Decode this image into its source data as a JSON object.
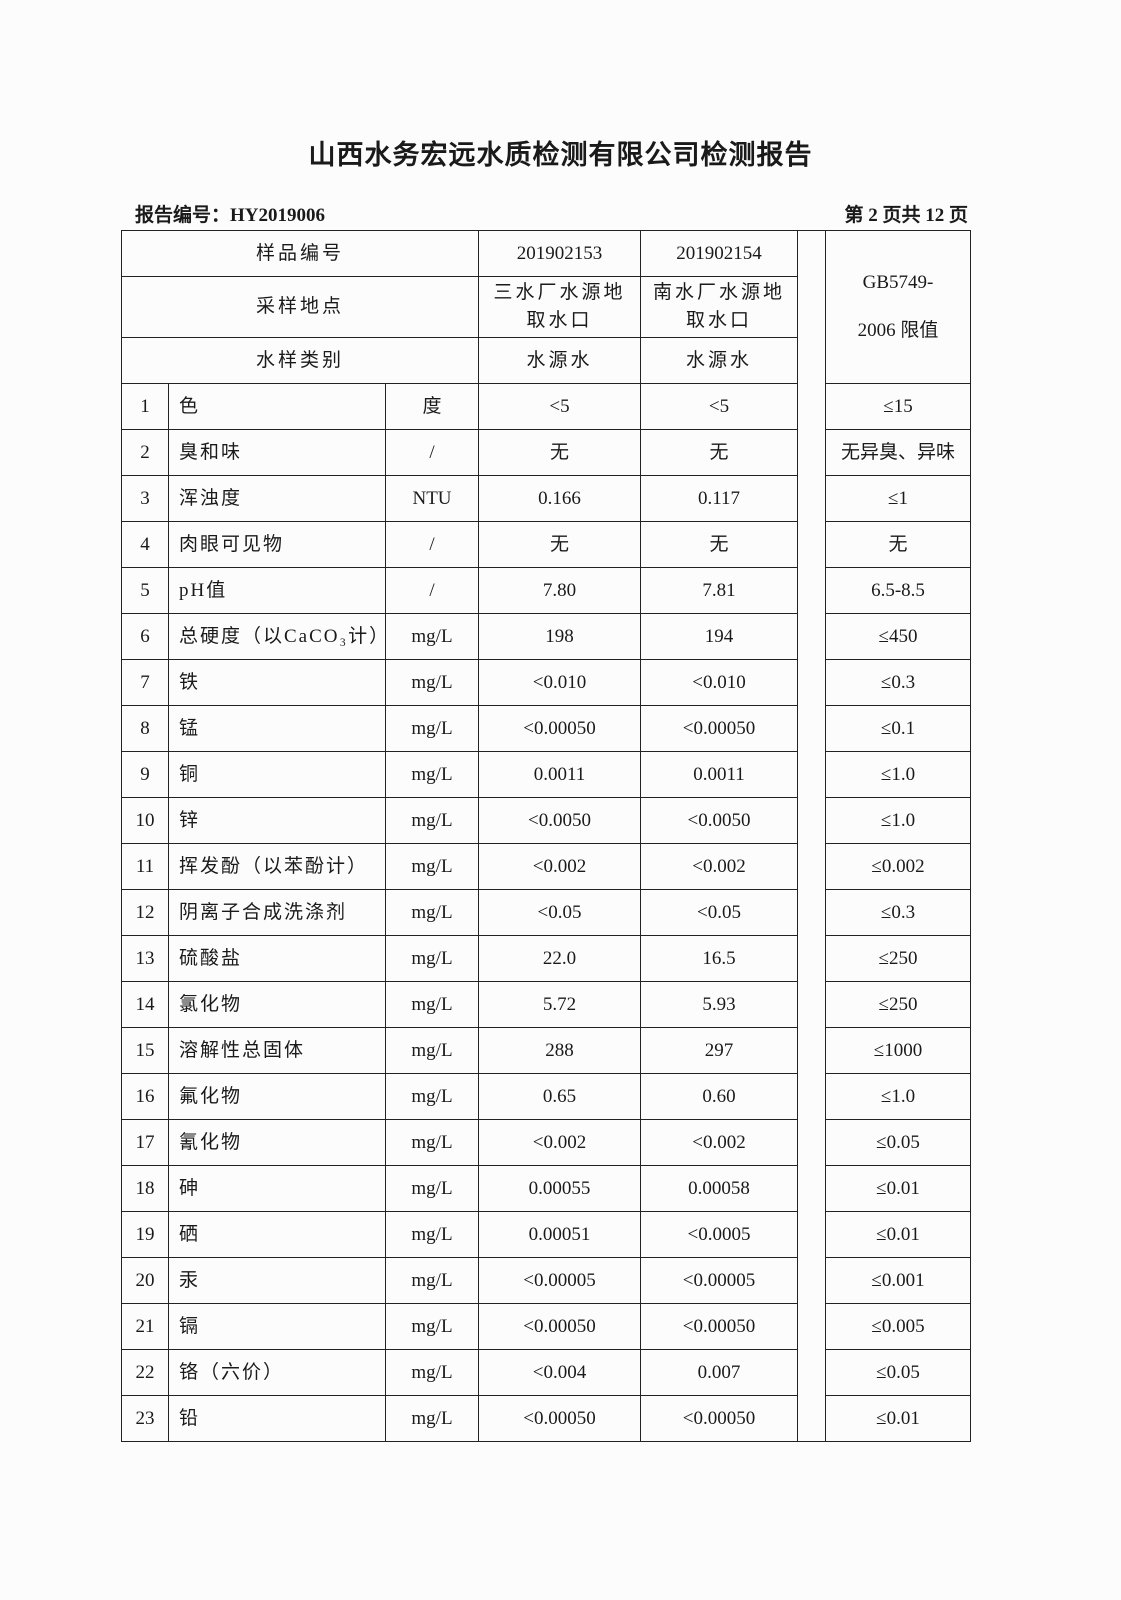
{
  "title": "山西水务宏远水质检测有限公司检测报告",
  "report_no": "报告编号：HY2019006",
  "page_no": "第 2 页共 12 页",
  "header": {
    "sample_no_label": "样品编号",
    "sample_site_label": "采样地点",
    "sample_type_label": "水样类别",
    "limit_label_1": "GB5749-",
    "limit_label_2": "2006 限值",
    "samples": [
      {
        "no": "201902153",
        "site": "三水厂水源地取水口",
        "type": "水源水"
      },
      {
        "no": "201902154",
        "site": "南水厂水源地取水口",
        "type": "水源水"
      }
    ]
  },
  "rows": [
    {
      "n": "1",
      "item": "色",
      "unit": "度",
      "v1": "<5",
      "v2": "<5",
      "limit": "≤15"
    },
    {
      "n": "2",
      "item": "臭和味",
      "unit": "/",
      "v1": "无",
      "v2": "无",
      "limit": "无异臭、异味"
    },
    {
      "n": "3",
      "item": "浑浊度",
      "unit": "NTU",
      "v1": "0.166",
      "v2": "0.117",
      "limit": "≤1"
    },
    {
      "n": "4",
      "item": "肉眼可见物",
      "unit": "/",
      "v1": "无",
      "v2": "无",
      "limit": "无"
    },
    {
      "n": "5",
      "item": "pH值",
      "unit": "/",
      "v1": "7.80",
      "v2": "7.81",
      "limit": "6.5-8.5"
    },
    {
      "n": "6",
      "item": "总硬度（以CaCO₃计）",
      "unit": "mg/L",
      "v1": "198",
      "v2": "194",
      "limit": "≤450"
    },
    {
      "n": "7",
      "item": "铁",
      "unit": "mg/L",
      "v1": "<0.010",
      "v2": "<0.010",
      "limit": "≤0.3"
    },
    {
      "n": "8",
      "item": "锰",
      "unit": "mg/L",
      "v1": "<0.00050",
      "v2": "<0.00050",
      "limit": "≤0.1"
    },
    {
      "n": "9",
      "item": "铜",
      "unit": "mg/L",
      "v1": "0.0011",
      "v2": "0.0011",
      "limit": "≤1.0"
    },
    {
      "n": "10",
      "item": "锌",
      "unit": "mg/L",
      "v1": "<0.0050",
      "v2": "<0.0050",
      "limit": "≤1.0"
    },
    {
      "n": "11",
      "item": "挥发酚（以苯酚计）",
      "unit": "mg/L",
      "v1": "<0.002",
      "v2": "<0.002",
      "limit": "≤0.002"
    },
    {
      "n": "12",
      "item": "阴离子合成洗涤剂",
      "unit": "mg/L",
      "v1": "<0.05",
      "v2": "<0.05",
      "limit": "≤0.3"
    },
    {
      "n": "13",
      "item": "硫酸盐",
      "unit": "mg/L",
      "v1": "22.0",
      "v2": "16.5",
      "limit": "≤250"
    },
    {
      "n": "14",
      "item": "氯化物",
      "unit": "mg/L",
      "v1": "5.72",
      "v2": "5.93",
      "limit": "≤250"
    },
    {
      "n": "15",
      "item": "溶解性总固体",
      "unit": "mg/L",
      "v1": "288",
      "v2": "297",
      "limit": "≤1000"
    },
    {
      "n": "16",
      "item": "氟化物",
      "unit": "mg/L",
      "v1": "0.65",
      "v2": "0.60",
      "limit": "≤1.0"
    },
    {
      "n": "17",
      "item": "氰化物",
      "unit": "mg/L",
      "v1": "<0.002",
      "v2": "<0.002",
      "limit": "≤0.05"
    },
    {
      "n": "18",
      "item": "砷",
      "unit": "mg/L",
      "v1": "0.00055",
      "v2": "0.00058",
      "limit": "≤0.01"
    },
    {
      "n": "19",
      "item": "硒",
      "unit": "mg/L",
      "v1": "0.00051",
      "v2": "<0.0005",
      "limit": "≤0.01"
    },
    {
      "n": "20",
      "item": "汞",
      "unit": "mg/L",
      "v1": "<0.00005",
      "v2": "<0.00005",
      "limit": "≤0.001"
    },
    {
      "n": "21",
      "item": "镉",
      "unit": "mg/L",
      "v1": "<0.00050",
      "v2": "<0.00050",
      "limit": "≤0.005"
    },
    {
      "n": "22",
      "item": "铬（六价）",
      "unit": "mg/L",
      "v1": "<0.004",
      "v2": "0.007",
      "limit": "≤0.05"
    },
    {
      "n": "23",
      "item": "铅",
      "unit": "mg/L",
      "v1": "<0.00050",
      "v2": "<0.00050",
      "limit": "≤0.01"
    }
  ]
}
